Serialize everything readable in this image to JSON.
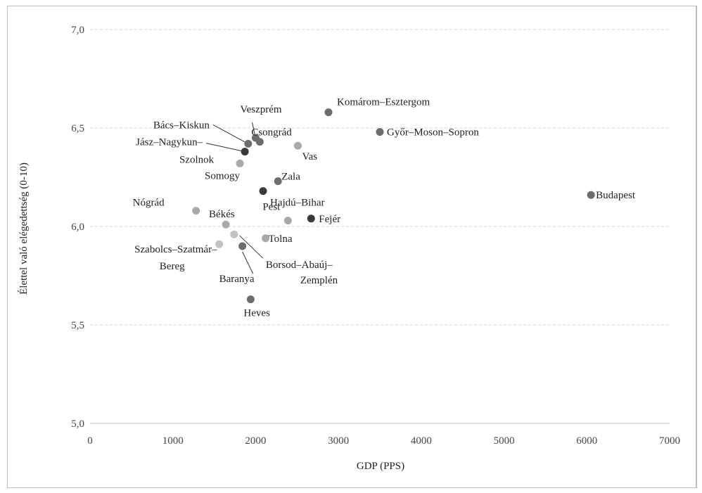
{
  "chart_data": {
    "type": "scatter",
    "xlabel": "GDP (PPS)",
    "ylabel": "Élettel való elégedettség (0-10)",
    "xlim": [
      0,
      7000
    ],
    "ylim": [
      5.0,
      7.0
    ],
    "x_ticks": [
      "0",
      "1000",
      "2000",
      "3000",
      "4000",
      "5000",
      "6000",
      "7000"
    ],
    "y_ticks": [
      "5,0",
      "5,5",
      "6,0",
      "6,5",
      "7,0"
    ],
    "grid": "horizontal dashed",
    "point_colors": {
      "dark": "#3a3a3a",
      "mid": "#6d6d6d",
      "light": "#a9a9a9",
      "lighter": "#c2c2c2"
    },
    "points": [
      {
        "label": [
          "Budapest"
        ],
        "x": 6050,
        "y": 6.16,
        "shade": "mid"
      },
      {
        "label": [
          "Komárom–Esztergom"
        ],
        "x": 2880,
        "y": 6.58,
        "shade": "mid"
      },
      {
        "label": [
          "Győr–Moson–Sopron"
        ],
        "x": 3500,
        "y": 6.48,
        "shade": "mid"
      },
      {
        "label": [
          "Veszprém"
        ],
        "x": 2000,
        "y": 6.45,
        "shade": "mid"
      },
      {
        "label": [
          "Csongrád"
        ],
        "x": 2050,
        "y": 6.43,
        "shade": "mid"
      },
      {
        "label": [
          "Bács–Kiskun"
        ],
        "x": 1910,
        "y": 6.42,
        "shade": "mid"
      },
      {
        "label": [
          "Jász–Nagykun–",
          "Szolnok"
        ],
        "x": 1870,
        "y": 6.38,
        "shade": "dark"
      },
      {
        "label": [
          "Vas"
        ],
        "x": 2510,
        "y": 6.41,
        "shade": "light"
      },
      {
        "label": [
          "Somogy"
        ],
        "x": 1810,
        "y": 6.32,
        "shade": "light"
      },
      {
        "label": [
          "Zala"
        ],
        "x": 2270,
        "y": 6.23,
        "shade": "mid"
      },
      {
        "label": [
          "Hajdú–Bihar"
        ],
        "x": 2090,
        "y": 6.18,
        "shade": "dark"
      },
      {
        "label": [
          "Nógrád"
        ],
        "x": 1280,
        "y": 6.08,
        "shade": "light"
      },
      {
        "label": [
          "Pest"
        ],
        "x": 2390,
        "y": 6.03,
        "shade": "light"
      },
      {
        "label": [
          "Fejér"
        ],
        "x": 2670,
        "y": 6.04,
        "shade": "dark"
      },
      {
        "label": [
          "Békés"
        ],
        "x": 1640,
        "y": 6.01,
        "shade": "light"
      },
      {
        "label": [
          "Borsod–Abaúj–",
          "Zemplén"
        ],
        "x": 1740,
        "y": 5.96,
        "shade": "lighter"
      },
      {
        "label": [
          "Tolna"
        ],
        "x": 2120,
        "y": 5.94,
        "shade": "light"
      },
      {
        "label": [
          "Szabolcs–Szatmár–",
          "Bereg"
        ],
        "x": 1560,
        "y": 5.91,
        "shade": "lighter"
      },
      {
        "label": [
          "Baranya"
        ],
        "x": 1840,
        "y": 5.9,
        "shade": "mid"
      },
      {
        "label": [
          "Heves"
        ],
        "x": 1940,
        "y": 5.63,
        "shade": "mid"
      }
    ]
  }
}
